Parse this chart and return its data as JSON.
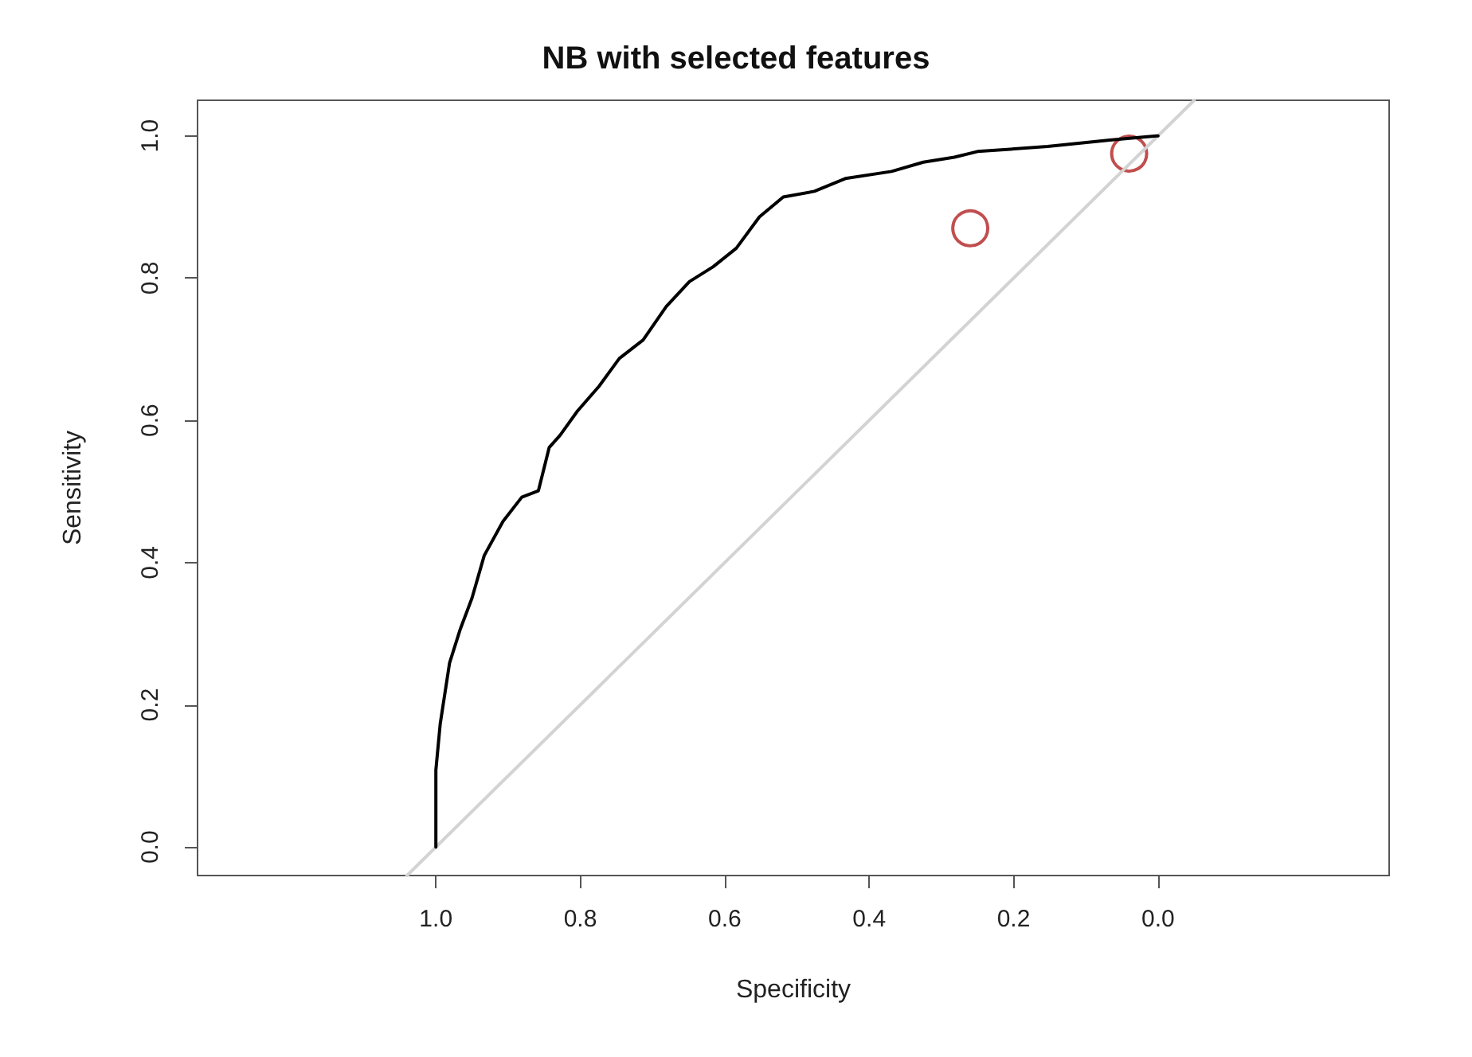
{
  "chart_data": {
    "type": "line",
    "title": "NB with selected features",
    "xlabel": "Specificity",
    "ylabel": "Sensitivity",
    "xlim": [
      1.33,
      -0.32
    ],
    "ylim": [
      -0.04,
      1.05
    ],
    "xticks": [
      {
        "value": 1,
        "label": "1.0"
      },
      {
        "value": 0.8,
        "label": "0.8"
      },
      {
        "value": 0.6,
        "label": "0.6"
      },
      {
        "value": 0.4,
        "label": "0.4"
      },
      {
        "value": 0.2,
        "label": "0.2"
      },
      {
        "value": 0,
        "label": "0.0"
      }
    ],
    "yticks": [
      {
        "value": 0,
        "label": "0.0"
      },
      {
        "value": 0.2,
        "label": "0.2"
      },
      {
        "value": 0.4,
        "label": "0.4"
      },
      {
        "value": 0.6,
        "label": "0.6"
      },
      {
        "value": 0.8,
        "label": "0.8"
      },
      {
        "value": 1,
        "label": "1.0"
      }
    ],
    "grid": false,
    "series": [
      {
        "color": "#d3d3d3",
        "x": [
          1.04,
          -0.05
        ],
        "values": [
          -0.04,
          1.05
        ]
      },
      {
        "color": "#000000",
        "x": [
          1.0,
          1.0,
          0.994,
          0.981,
          0.966,
          0.95,
          0.933,
          0.907,
          0.881,
          0.858,
          0.843,
          0.828,
          0.804,
          0.774,
          0.746,
          0.713,
          0.681,
          0.649,
          0.616,
          0.584,
          0.552,
          0.519,
          0.476,
          0.433,
          0.369,
          0.325,
          0.282,
          0.25,
          0.153,
          0.067,
          0.024,
          0.002,
          0.0
        ],
        "values": [
          0.0,
          0.108,
          0.173,
          0.259,
          0.307,
          0.35,
          0.41,
          0.458,
          0.492,
          0.501,
          0.562,
          0.579,
          0.613,
          0.648,
          0.687,
          0.713,
          0.76,
          0.795,
          0.816,
          0.842,
          0.886,
          0.914,
          0.922,
          0.94,
          0.95,
          0.963,
          0.97,
          0.978,
          0.985,
          0.994,
          0.998,
          1.0,
          1.0
        ]
      },
      {
        "type": "scatter",
        "color": "#b22222",
        "marker": "circle",
        "x": [
          0.26,
          0.04
        ],
        "values": [
          0.87,
          0.975
        ]
      }
    ]
  }
}
